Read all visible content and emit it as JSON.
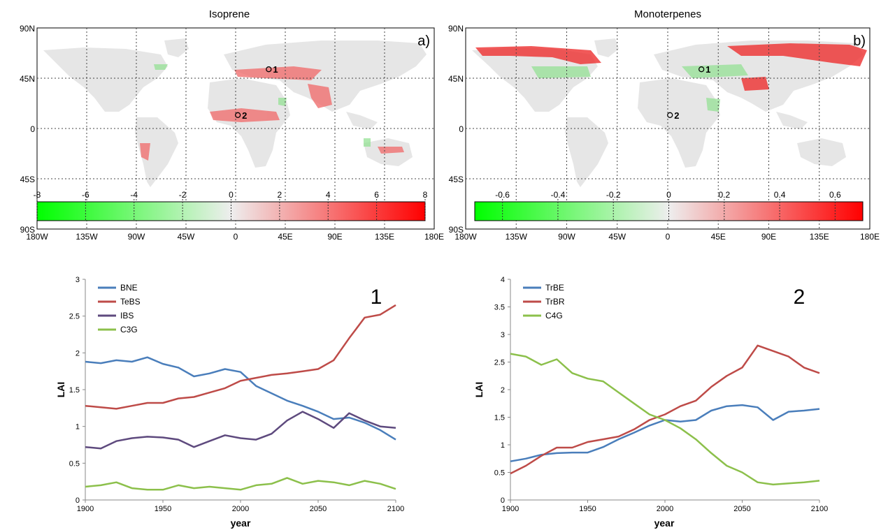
{
  "maps": [
    {
      "title": "Isoprene",
      "panel_label": "a)",
      "lat_ticks": [
        "90N",
        "45N",
        "0",
        "45S",
        "90S"
      ],
      "lon_ticks": [
        "180W",
        "135W",
        "90W",
        "45W",
        "0",
        "45E",
        "90E",
        "135E",
        "180E"
      ],
      "colorbar": {
        "ticks": [
          "-8",
          "-6",
          "-4",
          "-2",
          "0",
          "2",
          "4",
          "6",
          "8"
        ],
        "min": -8,
        "max": 8,
        "colors": [
          "#00ff00",
          "#eeeeee",
          "#ff0000"
        ]
      },
      "markers": [
        {
          "label": "1",
          "lon": 30,
          "lat": 53
        },
        {
          "label": "2",
          "lon": 2,
          "lat": 12
        }
      ]
    },
    {
      "title": "Monoterpenes",
      "panel_label": "b)",
      "lat_ticks": [
        "90N",
        "45N",
        "0",
        "45S",
        "90S"
      ],
      "lon_ticks": [
        "180W",
        "135W",
        "90W",
        "45W",
        "0",
        "45E",
        "90E",
        "135E",
        "180E"
      ],
      "colorbar": {
        "ticks": [
          "-0.6",
          "-0.4",
          "-0.2",
          "0",
          "0.2",
          "0.4",
          "0.6"
        ],
        "min": -0.7,
        "max": 0.7,
        "colors": [
          "#00ff00",
          "#eeeeee",
          "#ff0000"
        ]
      },
      "markers": [
        {
          "label": "1",
          "lon": 30,
          "lat": 53
        },
        {
          "label": "2",
          "lon": 2,
          "lat": 12
        }
      ]
    }
  ],
  "chart_data": [
    {
      "type": "line",
      "panel_number": "1",
      "xlabel": "year",
      "ylabel": "LAI",
      "xlim": [
        1900,
        2100
      ],
      "ylim": [
        0,
        3
      ],
      "xticks": [
        "1900",
        "1950",
        "2000",
        "2050",
        "2100"
      ],
      "yticks": [
        "0",
        "0.5",
        "1",
        "1.5",
        "2",
        "2.5",
        "3"
      ],
      "legend_position": "top-left",
      "x": [
        1900,
        1910,
        1920,
        1930,
        1940,
        1950,
        1960,
        1970,
        1980,
        1990,
        2000,
        2010,
        2020,
        2030,
        2040,
        2050,
        2060,
        2070,
        2080,
        2090,
        2100
      ],
      "series": [
        {
          "name": "BNE",
          "color": "#4a7ebb",
          "values": [
            1.88,
            1.86,
            1.9,
            1.88,
            1.94,
            1.85,
            1.8,
            1.68,
            1.72,
            1.78,
            1.74,
            1.55,
            1.45,
            1.35,
            1.28,
            1.2,
            1.1,
            1.12,
            1.05,
            0.95,
            0.82
          ]
        },
        {
          "name": "TeBS",
          "color": "#be4b48",
          "values": [
            1.28,
            1.26,
            1.24,
            1.28,
            1.32,
            1.32,
            1.38,
            1.4,
            1.46,
            1.52,
            1.62,
            1.66,
            1.7,
            1.72,
            1.75,
            1.78,
            1.9,
            2.2,
            2.48,
            2.52,
            2.65
          ]
        },
        {
          "name": "IBS",
          "color": "#5e4a7e",
          "values": [
            0.72,
            0.7,
            0.8,
            0.84,
            0.86,
            0.85,
            0.82,
            0.72,
            0.8,
            0.88,
            0.84,
            0.82,
            0.9,
            1.08,
            1.2,
            1.1,
            0.98,
            1.18,
            1.08,
            1.0,
            0.98
          ]
        },
        {
          "name": "C3G",
          "color": "#8cc04b",
          "values": [
            0.18,
            0.2,
            0.24,
            0.16,
            0.14,
            0.14,
            0.2,
            0.16,
            0.18,
            0.16,
            0.14,
            0.2,
            0.22,
            0.3,
            0.22,
            0.26,
            0.24,
            0.2,
            0.26,
            0.22,
            0.15
          ]
        }
      ]
    },
    {
      "type": "line",
      "panel_number": "2",
      "xlabel": "year",
      "ylabel": "LAI",
      "xlim": [
        1900,
        2100
      ],
      "ylim": [
        0,
        4
      ],
      "xticks": [
        "1900",
        "1950",
        "2000",
        "2050",
        "2100"
      ],
      "yticks": [
        "0",
        "0.5",
        "1",
        "1.5",
        "2",
        "2.5",
        "3",
        "3.5",
        "4"
      ],
      "legend_position": "top-left",
      "x": [
        1900,
        1910,
        1920,
        1930,
        1940,
        1950,
        1960,
        1970,
        1980,
        1990,
        2000,
        2010,
        2020,
        2030,
        2040,
        2050,
        2060,
        2070,
        2080,
        2090,
        2100
      ],
      "series": [
        {
          "name": "TrBE",
          "color": "#4a7ebb",
          "values": [
            0.7,
            0.75,
            0.82,
            0.85,
            0.86,
            0.86,
            0.96,
            1.1,
            1.22,
            1.35,
            1.45,
            1.42,
            1.45,
            1.62,
            1.7,
            1.72,
            1.68,
            1.45,
            1.6,
            1.62,
            1.65
          ]
        },
        {
          "name": "TrBR",
          "color": "#be4b48",
          "values": [
            0.48,
            0.62,
            0.8,
            0.95,
            0.95,
            1.05,
            1.1,
            1.15,
            1.28,
            1.45,
            1.55,
            1.7,
            1.8,
            2.05,
            2.25,
            2.4,
            2.8,
            2.7,
            2.6,
            2.4,
            2.3
          ]
        },
        {
          "name": "C4G",
          "color": "#8cc04b",
          "values": [
            2.65,
            2.6,
            2.45,
            2.55,
            2.3,
            2.2,
            2.15,
            1.95,
            1.75,
            1.55,
            1.45,
            1.3,
            1.1,
            0.85,
            0.62,
            0.5,
            0.32,
            0.28,
            0.3,
            0.32,
            0.35
          ]
        }
      ]
    }
  ]
}
